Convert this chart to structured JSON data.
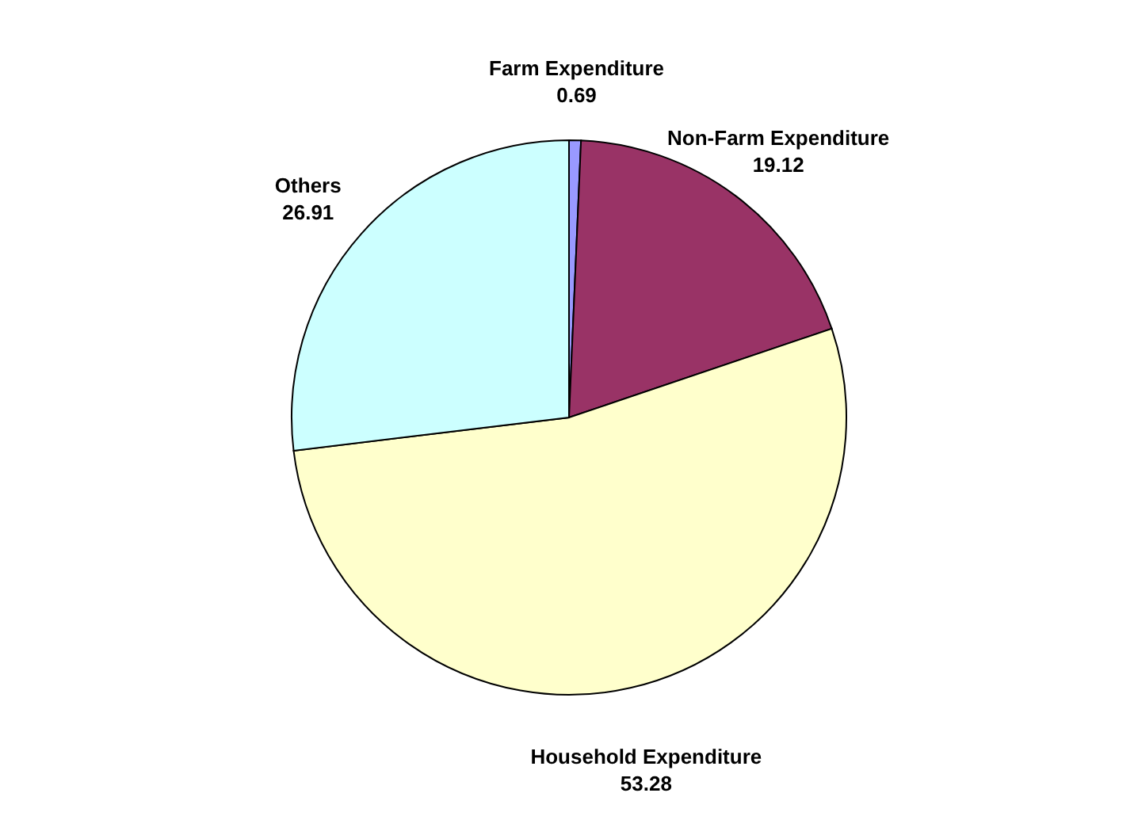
{
  "chart_data": {
    "type": "pie",
    "categories": [
      "Farm Expenditure",
      "Non-Farm Expenditure",
      "Household Expenditure",
      "Others"
    ],
    "values": [
      0.69,
      19.12,
      53.28,
      26.91
    ],
    "colors": [
      "#9999ff",
      "#993366",
      "#ffffcc",
      "#ccffff"
    ],
    "data_labels": true,
    "legend": false
  }
}
